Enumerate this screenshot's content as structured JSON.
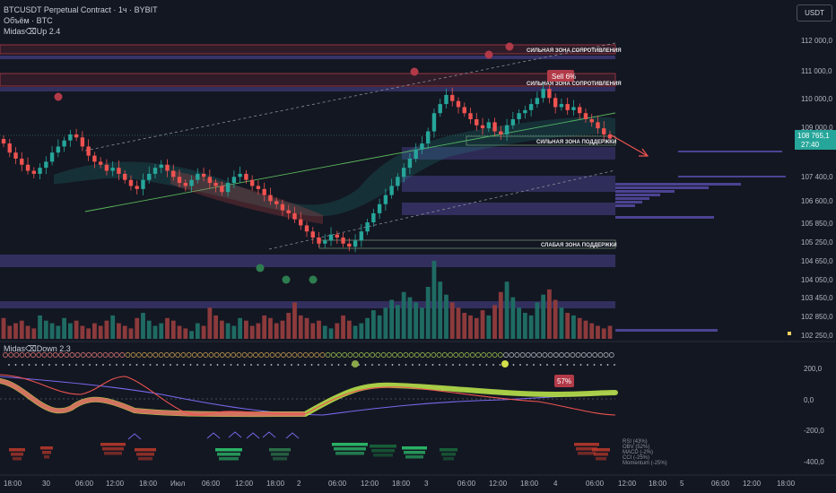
{
  "header": {
    "symbol_line": "BTCUSDT Perpetual Contract · 1ч · BYBIT",
    "volume_line": "Объём · BTC",
    "indicator_line": "Midas⌫Up 2.4"
  },
  "currency_button": "USDT",
  "sub_indicator_label": "Midas⌫Down 2.3",
  "price_axis": [
    "112 000,0",
    "111 000,0",
    "110 000,0",
    "109 000,0",
    "107 400,0",
    "106 600,0",
    "105 850,0",
    "105 250,0",
    "104 650,0",
    "104 050,0",
    "103 450,0",
    "102 850,0",
    "102 250,0"
  ],
  "osc_axis": [
    "200,0",
    "0,0",
    "-200,0",
    "-400,0"
  ],
  "time_axis": [
    "18:00",
    "30",
    "06:00",
    "12:00",
    "18:00",
    "Июл",
    "06:00",
    "12:00",
    "18:00",
    "2",
    "06:00",
    "12:00",
    "18:00",
    "3",
    "06:00",
    "12:00",
    "18:00",
    "4",
    "06:00",
    "12:00",
    "18:00",
    "5",
    "06:00",
    "12:00",
    "18:00"
  ],
  "zones": [
    {
      "label": "СИЛЬНАЯ ЗОНА СОПРОТИВЛЕНИЯ",
      "color": "#b23a48"
    },
    {
      "label": "СИЛЬНАЯ ЗОНА СОПРОТИВЛЕНИЯ",
      "color": "#b23a48"
    },
    {
      "label": "СИЛЬНАЯ ЗОНА ПОДДЕРЖКИ",
      "color": "#7a8a7a"
    },
    {
      "label": "СЛАБАЯ ЗОНА ПОДДЕРЖКИ",
      "color": "#7a8a7a"
    }
  ],
  "sell_label": "Sell 6%",
  "osc_badge": "57%",
  "current_price": {
    "price": "108 765,1",
    "countdown": "27:40",
    "color": "#26a69a"
  },
  "side_notes": [
    "RSI (43%)",
    "OBV (52%)",
    "MACD (-2%)",
    "CCI (-25%)",
    "Momentum (-25%)"
  ],
  "colors": {
    "bull": "#26a69a",
    "bear": "#ef5350",
    "volBull": "#1f6b63",
    "volBear": "#8c3a3c",
    "signal": "#c2d84a",
    "purple": "#7b68ee"
  },
  "chart_data": {
    "type": "candlestick",
    "title": "BTCUSDT Perpetual Contract · 1ч · BYBIT",
    "ylim": [
      102000,
      112600
    ],
    "close_values": [
      108600,
      108300,
      108100,
      107900,
      107700,
      107600,
      107800,
      108000,
      108300,
      108500,
      108700,
      108900,
      108800,
      108500,
      108200,
      108000,
      107900,
      107700,
      107800,
      107600,
      107400,
      107200,
      107100,
      107400,
      107600,
      107800,
      107900,
      107700,
      107500,
      107300,
      107200,
      107400,
      107600,
      107500,
      107300,
      107200,
      107000,
      107300,
      107500,
      107600,
      107400,
      107200,
      107100,
      106900,
      106700,
      106600,
      106400,
      106300,
      106100,
      105900,
      105700,
      105500,
      105300,
      105400,
      105600,
      105500,
      105300,
      105200,
      105400,
      105700,
      106000,
      106300,
      106600,
      106900,
      107200,
      107500,
      107800,
      108100,
      108400,
      108600,
      109000,
      109600,
      109900,
      110200,
      110000,
      109800,
      109600,
      109400,
      109200,
      109100,
      109300,
      109000,
      108900,
      109200,
      109400,
      109600,
      109700,
      109900,
      110100,
      110400,
      110100,
      109800,
      109900,
      109700,
      109800,
      109600,
      109400,
      109300,
      109100,
      108900,
      108765
    ],
    "volume": [
      8,
      5,
      6,
      7,
      5,
      4,
      9,
      7,
      6,
      5,
      8,
      6,
      7,
      5,
      4,
      6,
      5,
      7,
      9,
      6,
      5,
      4,
      8,
      10,
      7,
      5,
      6,
      8,
      7,
      5,
      4,
      3,
      6,
      5,
      12,
      9,
      7,
      6,
      5,
      8,
      7,
      5,
      6,
      9,
      8,
      6,
      7,
      10,
      14,
      9,
      8,
      6,
      7,
      5,
      4,
      6,
      9,
      7,
      5,
      6,
      8,
      11,
      9,
      12,
      15,
      13,
      18,
      16,
      14,
      12,
      20,
      30,
      22,
      17,
      14,
      12,
      10,
      9,
      8,
      11,
      9,
      13,
      18,
      22,
      16,
      12,
      10,
      9,
      14,
      17,
      19,
      15,
      12,
      10,
      9,
      8,
      7,
      6,
      5,
      4,
      5
    ]
  }
}
